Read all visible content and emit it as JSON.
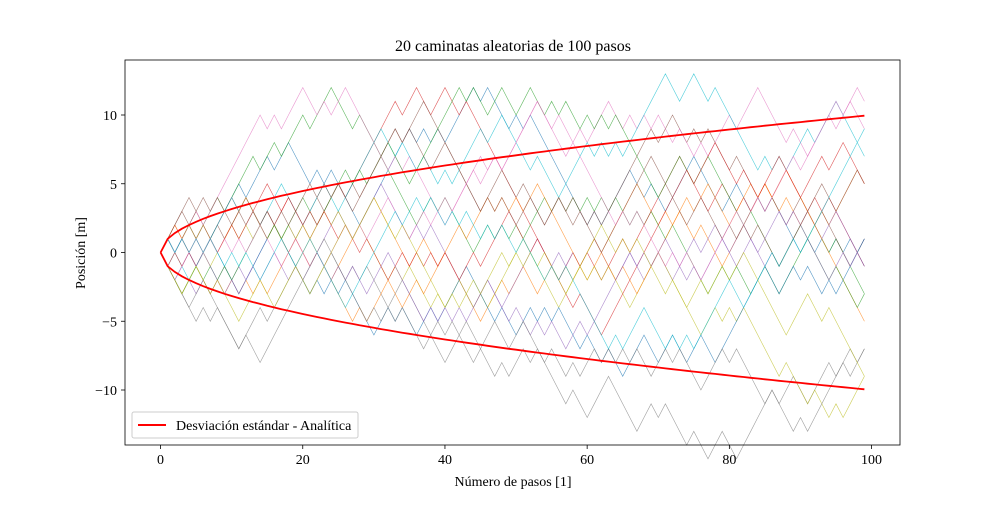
{
  "chart_data": {
    "type": "line",
    "title": "20 caminatas aleatorias de 100 pasos",
    "xlabel": "Número de pasos [1]",
    "ylabel": "Posición [m]",
    "xlim": [
      -5,
      104
    ],
    "ylim": [
      -14,
      14
    ],
    "xticks": [
      0,
      20,
      40,
      60,
      80,
      100
    ],
    "yticks": [
      -10,
      -5,
      0,
      5,
      10
    ],
    "xtick_labels": [
      "0",
      "20",
      "40",
      "60",
      "80",
      "100"
    ],
    "ytick_labels": [
      "−10",
      "−5",
      "0",
      "5",
      "10"
    ],
    "grid": false,
    "legend": {
      "position": "lower-left",
      "entries": [
        "Desviación estándar - Analítica"
      ]
    },
    "walk_colors": [
      "#1f77b4",
      "#ff7f0e",
      "#2ca02c",
      "#d62728",
      "#9467bd",
      "#8c564b",
      "#e377c2",
      "#7f7f7f",
      "#bcbd22",
      "#17becf",
      "#1f77b4",
      "#ff7f0e",
      "#2ca02c",
      "#d62728",
      "#9467bd",
      "#8c564b",
      "#e377c2",
      "#7f7f7f",
      "#bcbd22",
      "#17becf"
    ],
    "walks": [
      {
        "endpoints": [
          [
            0,
            0
          ],
          [
            13,
            5
          ],
          [
            29,
            2
          ],
          [
            47,
            11
          ],
          [
            60,
            3
          ],
          [
            76,
            7
          ],
          [
            99,
            0
          ]
        ]
      },
      {
        "endpoints": [
          [
            0,
            0
          ],
          [
            10,
            -2
          ],
          [
            32,
            2
          ],
          [
            47,
            -3
          ],
          [
            64,
            2
          ],
          [
            80,
            -1
          ],
          [
            99,
            6
          ]
        ]
      },
      {
        "endpoints": [
          [
            0,
            0
          ],
          [
            7,
            3
          ],
          [
            25,
            12
          ],
          [
            42,
            2
          ],
          [
            60,
            5
          ],
          [
            82,
            -2
          ],
          [
            99,
            -3
          ]
        ]
      },
      {
        "endpoints": [
          [
            0,
            0
          ],
          [
            16,
            3
          ],
          [
            40,
            12
          ],
          [
            58,
            0
          ],
          [
            78,
            4
          ],
          [
            99,
            -1
          ]
        ]
      },
      {
        "endpoints": [
          [
            0,
            0
          ],
          [
            11,
            -1
          ],
          [
            28,
            1
          ],
          [
            45,
            -3
          ],
          [
            66,
            0
          ],
          [
            85,
            -2
          ],
          [
            99,
            1
          ]
        ]
      },
      {
        "endpoints": [
          [
            0,
            0
          ],
          [
            14,
            1
          ],
          [
            31,
            7
          ],
          [
            52,
            4
          ],
          [
            71,
            10
          ],
          [
            99,
            1
          ]
        ]
      },
      {
        "endpoints": [
          [
            0,
            0
          ],
          [
            12,
            8
          ],
          [
            27,
            12
          ],
          [
            46,
            6
          ],
          [
            63,
            11
          ],
          [
            82,
            9
          ],
          [
            99,
            10
          ]
        ]
      },
      {
        "endpoints": [
          [
            0,
            0
          ],
          [
            14,
            -9
          ],
          [
            33,
            -3
          ],
          [
            47,
            -10
          ],
          [
            62,
            -10
          ],
          [
            82,
            -13
          ],
          [
            99,
            -6
          ]
        ]
      },
      {
        "endpoints": [
          [
            0,
            0
          ],
          [
            6,
            -1
          ],
          [
            25,
            2
          ],
          [
            47,
            -2
          ],
          [
            69,
            -2
          ],
          [
            91,
            -11
          ],
          [
            99,
            -9
          ]
        ]
      },
      {
        "endpoints": [
          [
            0,
            0
          ],
          [
            9,
            3
          ],
          [
            28,
            5
          ],
          [
            44,
            9
          ],
          [
            60,
            8
          ],
          [
            72,
            13
          ],
          [
            99,
            7
          ]
        ]
      },
      {
        "endpoints": [
          [
            0,
            0
          ],
          [
            13,
            -2
          ],
          [
            36,
            -6
          ],
          [
            52,
            -4
          ],
          [
            70,
            -7
          ],
          [
            87,
            -3
          ],
          [
            99,
            0
          ]
        ]
      },
      {
        "endpoints": [
          [
            0,
            0
          ],
          [
            8,
            1
          ],
          [
            24,
            -2
          ],
          [
            44,
            3
          ],
          [
            62,
            0
          ],
          [
            83,
            5
          ],
          [
            99,
            -4
          ]
        ]
      },
      {
        "endpoints": [
          [
            0,
            0
          ],
          [
            9,
            -2
          ],
          [
            30,
            7
          ],
          [
            51,
            10
          ],
          [
            70,
            4
          ],
          [
            88,
            1
          ],
          [
            99,
            -3
          ]
        ]
      },
      {
        "endpoints": [
          [
            0,
            0
          ],
          [
            14,
            4
          ],
          [
            30,
            -1
          ],
          [
            48,
            2
          ],
          [
            64,
            -4
          ],
          [
            82,
            6
          ],
          [
            99,
            5
          ]
        ]
      },
      {
        "endpoints": [
          [
            0,
            0
          ],
          [
            11,
            -3
          ],
          [
            26,
            -1
          ],
          [
            44,
            -5
          ],
          [
            63,
            -2
          ],
          [
            81,
            0
          ],
          [
            99,
            -2
          ]
        ]
      },
      {
        "endpoints": [
          [
            0,
            0
          ],
          [
            11,
            4
          ],
          [
            33,
            9
          ],
          [
            51,
            3
          ],
          [
            69,
            6
          ],
          [
            85,
            2
          ],
          [
            99,
            6
          ]
        ]
      },
      {
        "endpoints": [
          [
            0,
            0
          ],
          [
            17,
            -2
          ],
          [
            37,
            4
          ],
          [
            56,
            9
          ],
          [
            75,
            -1
          ],
          [
            99,
            12
          ]
        ]
      },
      {
        "endpoints": [
          [
            0,
            0
          ],
          [
            10,
            -7
          ],
          [
            26,
            -3
          ],
          [
            44,
            -8
          ],
          [
            61,
            -6
          ],
          [
            80,
            -9
          ],
          [
            99,
            -8
          ]
        ]
      },
      {
        "endpoints": [
          [
            0,
            0
          ],
          [
            9,
            -3
          ],
          [
            30,
            3
          ],
          [
            48,
            0
          ],
          [
            67,
            2
          ],
          [
            86,
            -4
          ],
          [
            99,
            -10
          ]
        ]
      },
      {
        "endpoints": [
          [
            0,
            0
          ],
          [
            9,
            0
          ],
          [
            27,
            -3
          ],
          [
            46,
            1
          ],
          [
            66,
            -6
          ],
          [
            87,
            -1
          ],
          [
            99,
            9
          ]
        ]
      }
    ],
    "std_series": {
      "name": "Desviación estándar - Analítica",
      "formula": "±sqrt(n)",
      "n_range": [
        0,
        99
      ],
      "color": "#ff0000"
    }
  }
}
